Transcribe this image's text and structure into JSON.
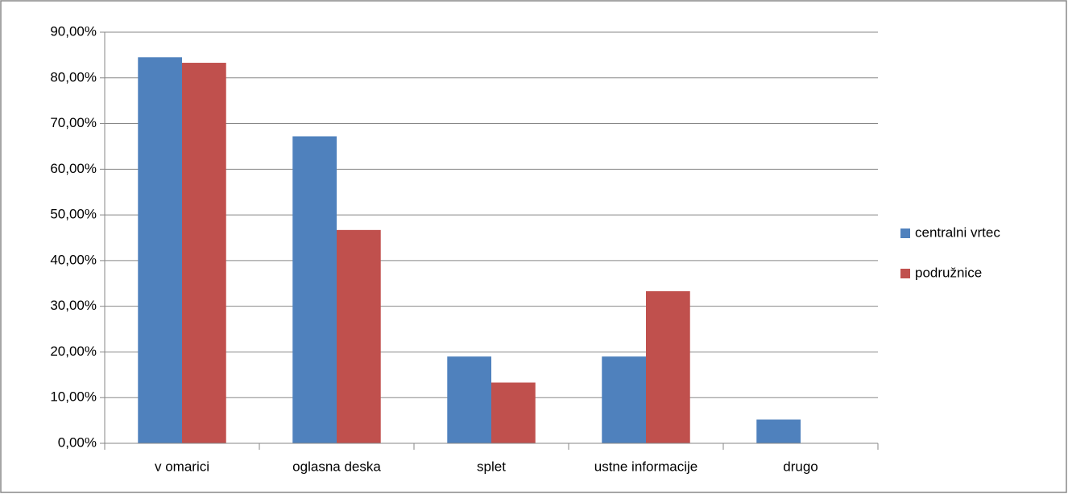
{
  "chart_data": {
    "type": "bar",
    "categories": [
      "v omarici",
      "oglasna deska",
      "splet",
      "ustne informacije",
      "drugo"
    ],
    "series": [
      {
        "name": "centralni vrtec",
        "color": "#4f81bd",
        "values": [
          84.5,
          67.2,
          19.0,
          19.0,
          5.2
        ]
      },
      {
        "name": "podružnice",
        "color": "#c0504d",
        "values": [
          83.3,
          46.7,
          13.3,
          33.3,
          0
        ]
      }
    ],
    "ylim": [
      0,
      90
    ],
    "yticks": [
      {
        "value": 0,
        "label": "0,00%"
      },
      {
        "value": 10,
        "label": "10,00%"
      },
      {
        "value": 20,
        "label": "20,00%"
      },
      {
        "value": 30,
        "label": "30,00%"
      },
      {
        "value": 40,
        "label": "40,00%"
      },
      {
        "value": 50,
        "label": "50,00%"
      },
      {
        "value": 60,
        "label": "60,00%"
      },
      {
        "value": 70,
        "label": "70,00%"
      },
      {
        "value": 80,
        "label": "80,00%"
      },
      {
        "value": 90,
        "label": "90,00%"
      }
    ],
    "grid": true,
    "legend": "right"
  }
}
